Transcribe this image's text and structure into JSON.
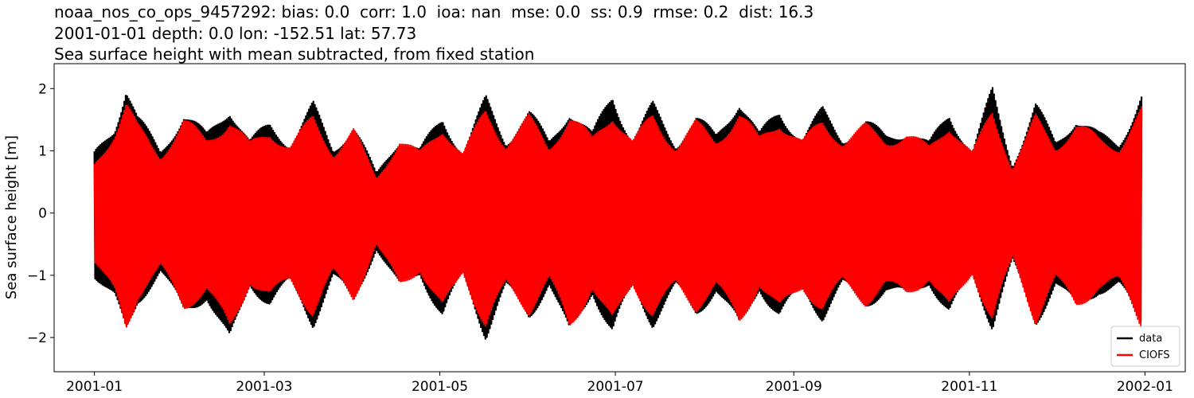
{
  "chart_data": {
    "type": "line",
    "title_lines": [
      "noaa_nos_co_ops_9457292: bias: 0.0  corr: 1.0  ioa: nan  mse: 0.0  ss: 0.9  rmse: 0.2  dist: 16.3",
      "2001-01-01 depth: 0.0 lon: -152.51 lat: 57.73",
      "Sea surface height with mean subtracted, from fixed station"
    ],
    "xlabel": "",
    "ylabel": "Sea surface height [m]",
    "xlim": [
      "2000-12-18",
      "2002-01-15"
    ],
    "ylim": [
      -2.55,
      2.4
    ],
    "xticks": [
      "2001-01",
      "2001-03",
      "2001-05",
      "2001-07",
      "2001-09",
      "2001-11",
      "2002-01"
    ],
    "yticks": [
      2,
      1,
      0,
      -1,
      -2
    ],
    "ytick_labels": [
      "2",
      "1",
      "0",
      "−1",
      "−2"
    ],
    "grid": false,
    "legend_position": "lower-right",
    "series": [
      {
        "name": "data",
        "color": "#000000",
        "envelope_max": {
          "x": [
            "2001-01-01",
            "2001-01-08",
            "2001-01-12",
            "2001-01-16",
            "2001-01-24",
            "2001-02-01",
            "2001-02-09",
            "2001-02-17",
            "2001-02-24",
            "2001-03-03",
            "2001-03-10",
            "2001-03-18",
            "2001-03-25",
            "2001-04-01",
            "2001-04-09",
            "2001-04-17",
            "2001-04-24",
            "2001-05-02",
            "2001-05-09",
            "2001-05-17",
            "2001-05-24",
            "2001-06-01",
            "2001-06-08",
            "2001-06-15",
            "2001-06-23",
            "2001-06-30",
            "2001-07-07",
            "2001-07-14",
            "2001-07-22",
            "2001-07-29",
            "2001-08-05",
            "2001-08-13",
            "2001-08-20",
            "2001-08-27",
            "2001-09-04",
            "2001-09-11",
            "2001-09-18",
            "2001-09-26",
            "2001-10-03",
            "2001-10-10",
            "2001-10-18",
            "2001-10-25",
            "2001-11-02",
            "2001-11-09",
            "2001-11-16",
            "2001-11-24",
            "2001-12-01",
            "2001-12-08",
            "2001-12-16",
            "2001-12-23",
            "2001-12-31"
          ],
          "y": [
            1.0,
            1.5,
            2.2,
            1.6,
            1.05,
            1.7,
            1.3,
            1.85,
            1.2,
            1.5,
            1.2,
            1.8,
            1.1,
            1.5,
            0.65,
            1.3,
            1.05,
            1.62,
            1.05,
            1.9,
            1.25,
            1.7,
            1.2,
            1.8,
            1.3,
            2.05,
            1.25,
            1.8,
            1.2,
            1.6,
            1.3,
            1.98,
            1.3,
            1.75,
            1.28,
            1.72,
            1.3,
            1.52,
            1.3,
            1.42,
            1.15,
            1.72,
            1.05,
            2.05,
            0.85,
            1.8,
            1.2,
            1.65,
            1.3,
            1.2,
            2.05
          ]
        },
        "envelope_min": {
          "x": [
            "2001-01-01",
            "2001-01-08",
            "2001-01-12",
            "2001-01-16",
            "2001-01-24",
            "2001-02-01",
            "2001-02-09",
            "2001-02-17",
            "2001-02-24",
            "2001-03-03",
            "2001-03-10",
            "2001-03-18",
            "2001-03-25",
            "2001-04-01",
            "2001-04-09",
            "2001-04-17",
            "2001-04-24",
            "2001-05-02",
            "2001-05-09",
            "2001-05-17",
            "2001-05-24",
            "2001-06-01",
            "2001-06-08",
            "2001-06-15",
            "2001-06-23",
            "2001-06-30",
            "2001-07-07",
            "2001-07-14",
            "2001-07-22",
            "2001-07-29",
            "2001-08-05",
            "2001-08-13",
            "2001-08-20",
            "2001-08-27",
            "2001-09-04",
            "2001-09-11",
            "2001-09-18",
            "2001-09-26",
            "2001-10-03",
            "2001-10-10",
            "2001-10-18",
            "2001-10-25",
            "2001-11-02",
            "2001-11-09",
            "2001-11-16",
            "2001-11-24",
            "2001-12-01",
            "2001-12-08",
            "2001-12-16",
            "2001-12-23",
            "2001-12-31"
          ],
          "y": [
            -1.05,
            -1.5,
            -2.1,
            -1.5,
            -1.0,
            -1.7,
            -1.4,
            -2.3,
            -1.2,
            -1.55,
            -1.2,
            -1.85,
            -1.1,
            -1.5,
            -0.6,
            -1.3,
            -1.0,
            -1.8,
            -1.05,
            -2.05,
            -1.3,
            -1.75,
            -1.2,
            -2.15,
            -1.3,
            -2.1,
            -1.25,
            -1.85,
            -1.3,
            -1.7,
            -1.3,
            -2.0,
            -1.25,
            -1.8,
            -1.3,
            -1.75,
            -1.25,
            -1.55,
            -1.3,
            -1.45,
            -1.15,
            -1.75,
            -1.05,
            -1.9,
            -0.85,
            -1.85,
            -1.2,
            -1.65,
            -1.3,
            -1.25,
            -1.95
          ]
        }
      },
      {
        "name": "CIOFS",
        "color": "#ff0000",
        "envelope_max": {
          "x": [
            "2001-01-01",
            "2001-01-08",
            "2001-01-12",
            "2001-01-16",
            "2001-01-24",
            "2001-02-01",
            "2001-02-09",
            "2001-02-17",
            "2001-02-24",
            "2001-03-03",
            "2001-03-10",
            "2001-03-18",
            "2001-03-25",
            "2001-04-01",
            "2001-04-09",
            "2001-04-17",
            "2001-04-24",
            "2001-05-02",
            "2001-05-09",
            "2001-05-17",
            "2001-05-24",
            "2001-06-01",
            "2001-06-08",
            "2001-06-15",
            "2001-06-23",
            "2001-06-30",
            "2001-07-07",
            "2001-07-14",
            "2001-07-22",
            "2001-07-29",
            "2001-08-05",
            "2001-08-13",
            "2001-08-20",
            "2001-08-27",
            "2001-09-04",
            "2001-09-11",
            "2001-09-18",
            "2001-09-26",
            "2001-10-03",
            "2001-10-10",
            "2001-10-18",
            "2001-10-25",
            "2001-11-02",
            "2001-11-09",
            "2001-11-16",
            "2001-11-24",
            "2001-12-01",
            "2001-12-08",
            "2001-12-16",
            "2001-12-23",
            "2001-12-31"
          ],
          "y": [
            0.85,
            1.4,
            1.85,
            1.45,
            1.0,
            1.55,
            1.25,
            1.6,
            1.15,
            1.4,
            1.15,
            1.6,
            1.05,
            1.4,
            0.6,
            1.25,
            1.0,
            1.5,
            1.0,
            1.75,
            1.2,
            1.6,
            1.15,
            1.65,
            1.25,
            1.75,
            1.2,
            1.65,
            1.15,
            1.5,
            1.25,
            1.7,
            1.25,
            1.6,
            1.2,
            1.55,
            1.25,
            1.45,
            1.25,
            1.35,
            1.1,
            1.55,
            1.0,
            1.75,
            0.8,
            1.6,
            1.15,
            1.5,
            1.25,
            1.15,
            1.75
          ]
        },
        "envelope_min": {
          "x": [
            "2001-01-01",
            "2001-01-08",
            "2001-01-12",
            "2001-01-16",
            "2001-01-24",
            "2001-02-01",
            "2001-02-09",
            "2001-02-17",
            "2001-02-24",
            "2001-03-03",
            "2001-03-10",
            "2001-03-18",
            "2001-03-25",
            "2001-04-01",
            "2001-04-09",
            "2001-04-17",
            "2001-04-24",
            "2001-05-02",
            "2001-05-09",
            "2001-05-17",
            "2001-05-24",
            "2001-06-01",
            "2001-06-08",
            "2001-06-15",
            "2001-06-23",
            "2001-06-30",
            "2001-07-07",
            "2001-07-14",
            "2001-07-22",
            "2001-07-29",
            "2001-08-05",
            "2001-08-13",
            "2001-08-20",
            "2001-08-27",
            "2001-09-04",
            "2001-09-11",
            "2001-09-18",
            "2001-09-26",
            "2001-10-03",
            "2001-10-10",
            "2001-10-18",
            "2001-10-25",
            "2001-11-02",
            "2001-11-09",
            "2001-11-16",
            "2001-11-24",
            "2001-12-01",
            "2001-12-08",
            "2001-12-16",
            "2001-12-23",
            "2001-12-31"
          ],
          "y": [
            -0.85,
            -1.4,
            -1.95,
            -1.4,
            -0.95,
            -1.6,
            -1.3,
            -2.05,
            -1.15,
            -1.45,
            -1.15,
            -1.7,
            -1.05,
            -1.45,
            -0.55,
            -1.25,
            -0.95,
            -1.7,
            -1.0,
            -1.95,
            -1.25,
            -1.65,
            -1.15,
            -2.0,
            -1.25,
            -1.95,
            -1.2,
            -1.75,
            -1.25,
            -1.6,
            -1.25,
            -1.9,
            -1.2,
            -1.7,
            -1.25,
            -1.65,
            -1.2,
            -1.5,
            -1.25,
            -1.4,
            -1.1,
            -1.7,
            -1.0,
            -1.85,
            -0.8,
            -1.8,
            -1.15,
            -1.6,
            -1.25,
            -1.2,
            -1.9
          ]
        }
      }
    ]
  }
}
